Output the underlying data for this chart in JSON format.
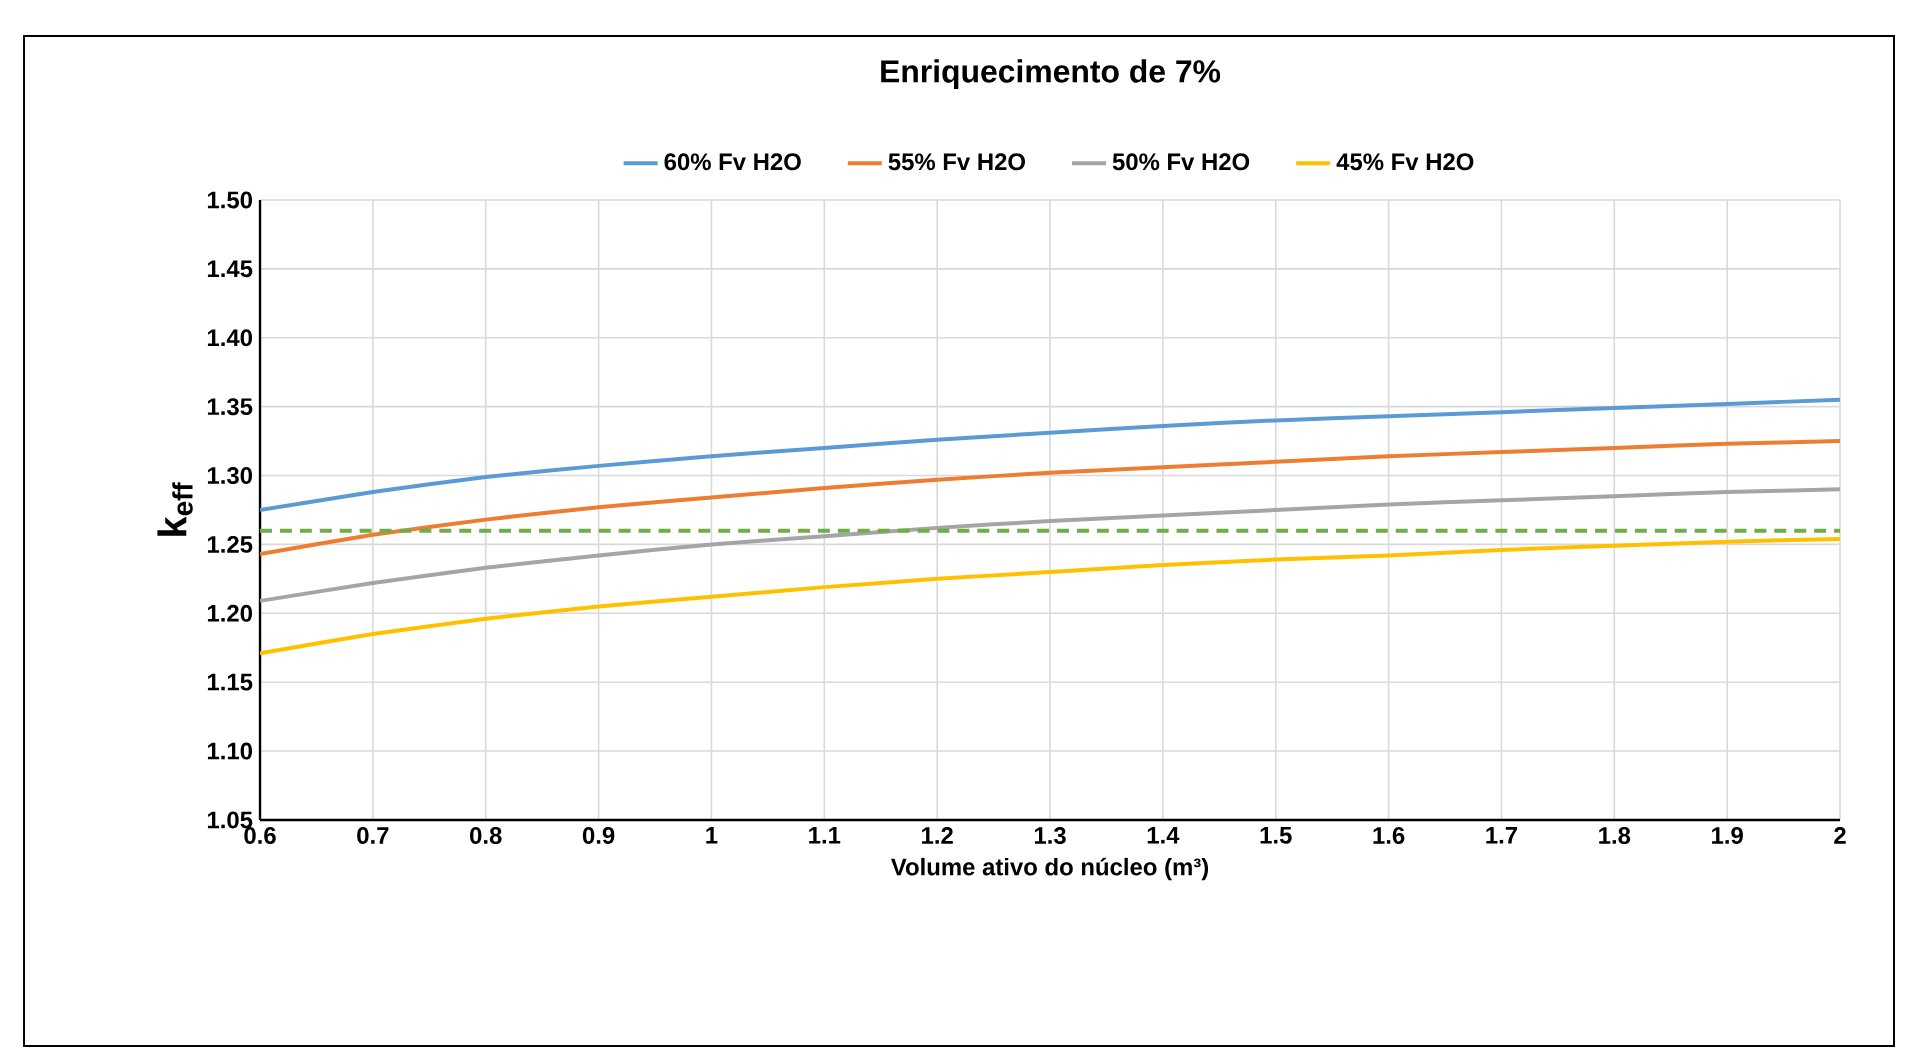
{
  "chart_data": {
    "type": "line",
    "title": "Enriquecimento de 7%",
    "xlabel": "Volume ativo do núcleo (m³)",
    "ylabel": "k$_{eff}$",
    "x": [
      0.6,
      0.7,
      0.8,
      0.9,
      1.0,
      1.1,
      1.2,
      1.3,
      1.4,
      1.5,
      1.6,
      1.7,
      1.8,
      1.9,
      2.0
    ],
    "series": [
      {
        "name": "60% Fv H2O",
        "color": "#5b9bd5",
        "values": [
          1.275,
          1.288,
          1.299,
          1.307,
          1.314,
          1.32,
          1.326,
          1.331,
          1.336,
          1.34,
          1.343,
          1.346,
          1.349,
          1.352,
          1.355
        ]
      },
      {
        "name": "55% Fv H2O",
        "color": "#ed7d31",
        "values": [
          1.243,
          1.257,
          1.268,
          1.277,
          1.284,
          1.291,
          1.297,
          1.302,
          1.306,
          1.31,
          1.314,
          1.317,
          1.32,
          1.323,
          1.325
        ]
      },
      {
        "name": "50% Fv H2O",
        "color": "#a5a5a5",
        "values": [
          1.209,
          1.222,
          1.233,
          1.242,
          1.25,
          1.256,
          1.262,
          1.267,
          1.271,
          1.275,
          1.279,
          1.282,
          1.285,
          1.288,
          1.29
        ]
      },
      {
        "name": "45% Fv H2O",
        "color": "#ffc000",
        "values": [
          1.171,
          1.185,
          1.196,
          1.205,
          1.212,
          1.219,
          1.225,
          1.23,
          1.235,
          1.239,
          1.242,
          1.246,
          1.249,
          1.252,
          1.254
        ]
      }
    ],
    "ref_lines": [
      {
        "axis": "y",
        "value": 1.26,
        "color": "#70ad47",
        "line_style": "dashed"
      }
    ],
    "xlim": [
      0.6,
      2.0
    ],
    "ylim": [
      1.05,
      1.5
    ],
    "xticks": [
      0.6,
      0.7,
      0.8,
      0.9,
      1,
      1.1,
      1.2,
      1.3,
      1.4,
      1.5,
      1.6,
      1.7,
      1.8,
      1.9,
      2
    ],
    "yticks": [
      {
        "value": 1.05,
        "label": "1.05"
      },
      {
        "value": 1.1,
        "label": "1.10"
      },
      {
        "value": 1.15,
        "label": "1.15"
      },
      {
        "value": 1.2,
        "label": "1.20"
      },
      {
        "value": 1.25,
        "label": "1.25"
      },
      {
        "value": 1.3,
        "label": "1.30"
      },
      {
        "value": 1.35,
        "label": "1.35"
      },
      {
        "value": 1.4,
        "label": "1.40"
      },
      {
        "value": 1.45,
        "label": "1.45"
      },
      {
        "value": 1.5,
        "label": "1.50"
      }
    ],
    "grid": true,
    "legend": "top",
    "marker": "none",
    "line_style": "solid"
  }
}
